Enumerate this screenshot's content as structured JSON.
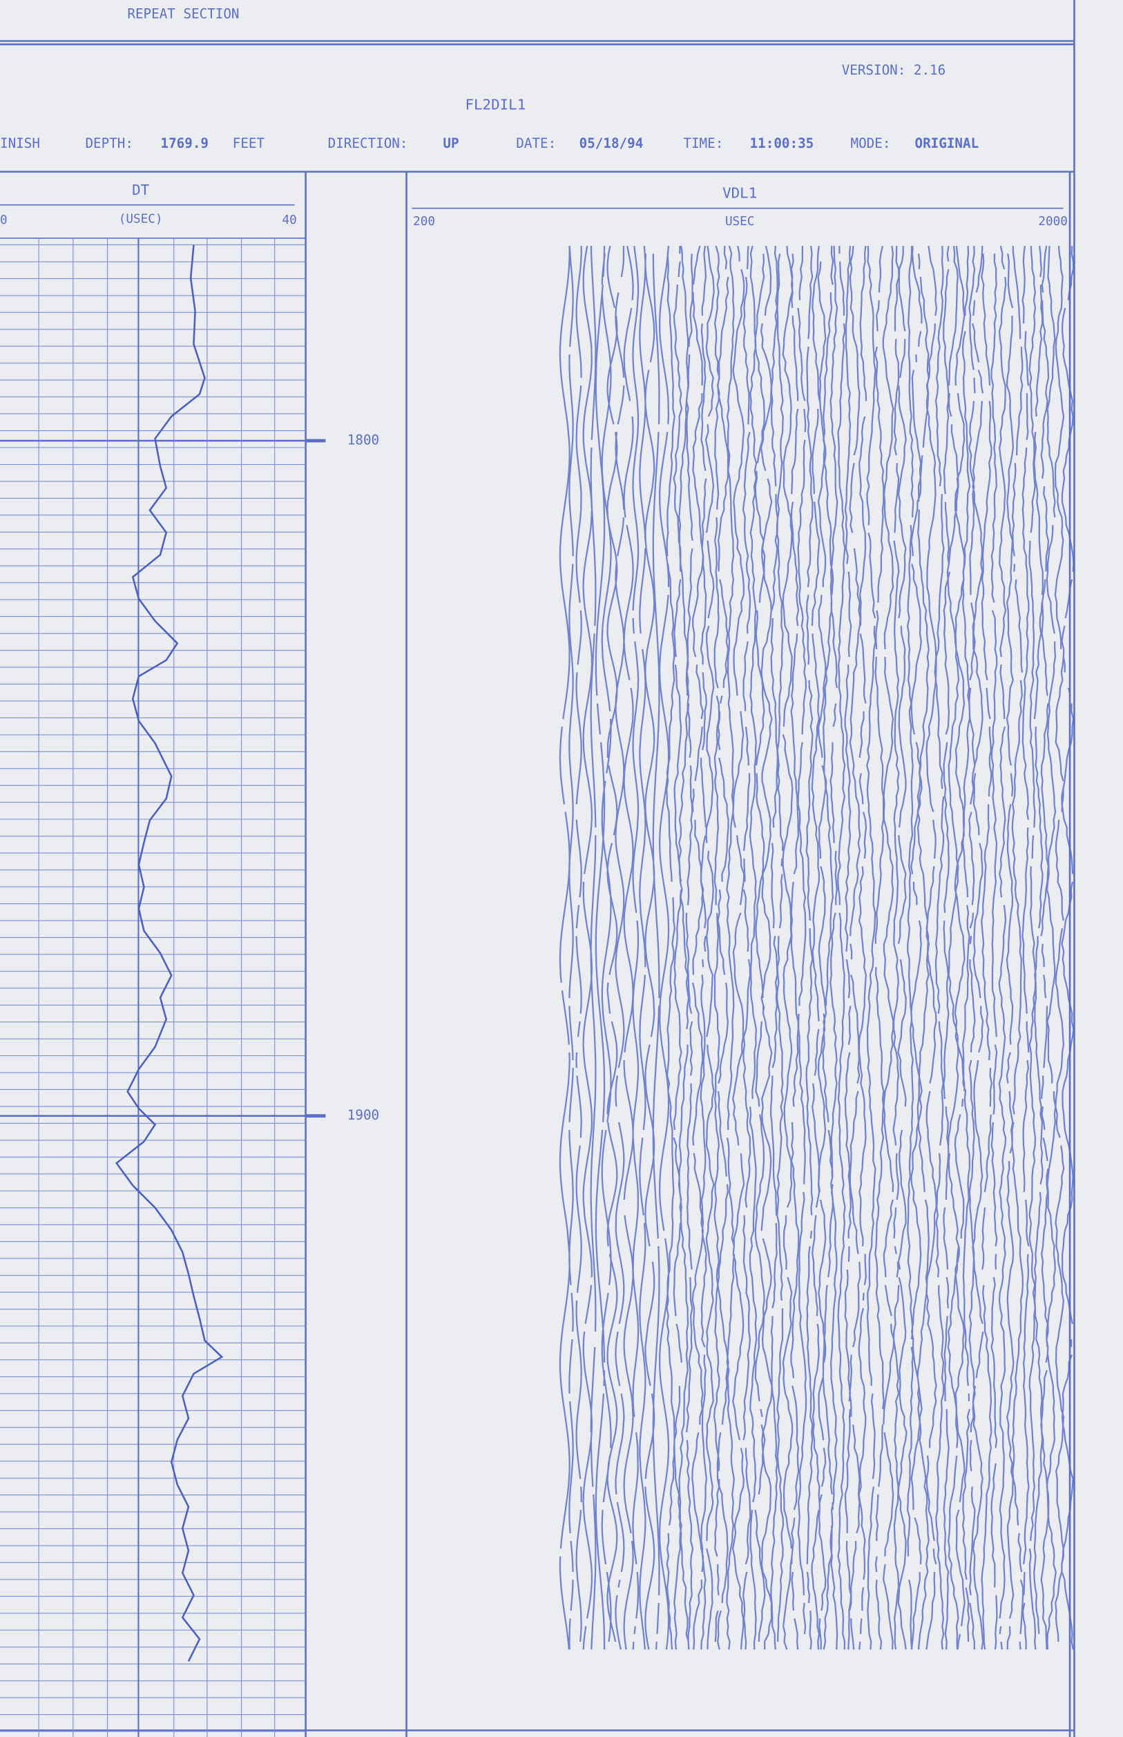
{
  "header": {
    "section": "REPEAT SECTION",
    "version": "VERSION: 2.16",
    "program": "FL2DIL1",
    "finish": "INISH",
    "depth_label": "DEPTH:",
    "depth": 1769.9,
    "depth_unit": "FEET",
    "direction_label": "DIRECTION:",
    "direction": "UP",
    "date_label": "DATE:",
    "date": "05/18/94",
    "time_label": "TIME:",
    "time": "11:00:35",
    "mode_label": "MODE:",
    "mode": "ORIGINAL"
  },
  "chart_data": {
    "type": "line",
    "orientation": "vertical",
    "title": "DT",
    "y_label": "(USEC)",
    "x": [
      1771.0,
      1775.9,
      1780.8,
      1785.7,
      1790.7,
      1793.1,
      1796.4,
      1799.7,
      1803.8,
      1807.0,
      1810.3,
      1813.6,
      1816.9,
      1820.2,
      1823.4,
      1826.7,
      1830.0,
      1832.5,
      1834.9,
      1838.2,
      1841.5,
      1844.8,
      1849.7,
      1853.0,
      1856.2,
      1859.5,
      1862.8,
      1866.1,
      1869.3,
      1872.6,
      1875.9,
      1879.2,
      1882.5,
      1885.7,
      1889.8,
      1893.1,
      1896.4,
      1898.9,
      1901.3,
      1903.8,
      1907.0,
      1910.3,
      1913.6,
      1916.9,
      1920.2,
      1923.4,
      1926.7,
      1930.0,
      1933.3,
      1935.7,
      1938.2,
      1941.5,
      1944.8,
      1948.0,
      1951.3,
      1954.6,
      1957.9,
      1961.1,
      1964.4,
      1967.7,
      1971.0,
      1974.3,
      1977.5,
      1980.8
    ],
    "series": [
      {
        "color": "#4b5fc4",
        "values": [
          26.1,
          25.7,
          26.3,
          26.1,
          27.6,
          26.9,
          23.1,
          20.9,
          21.6,
          22.4,
          20.2,
          22.4,
          21.6,
          17.9,
          18.7,
          20.9,
          23.9,
          22.4,
          18.7,
          17.9,
          18.7,
          20.9,
          23.1,
          22.4,
          20.2,
          19.4,
          18.7,
          19.4,
          18.7,
          19.4,
          21.6,
          23.1,
          21.6,
          22.4,
          20.9,
          18.7,
          17.2,
          18.7,
          20.9,
          19.4,
          15.7,
          17.9,
          20.9,
          23.1,
          24.6,
          25.4,
          26.1,
          26.9,
          27.6,
          29.9,
          26.1,
          24.6,
          25.4,
          23.9,
          23.1,
          23.9,
          25.4,
          24.6,
          25.4,
          24.6,
          26.1,
          24.6,
          26.9,
          25.4
        ]
      }
    ],
    "xlim": [
      1770,
      1992
    ],
    "xticks": [
      1800,
      1900
    ],
    "ylim": [
      0,
      40
    ],
    "yticks": [
      0,
      40
    ],
    "grid": true
  },
  "vdl": {
    "title": "VDL1",
    "unit": "USEC",
    "scale": [
      200,
      2000
    ]
  }
}
